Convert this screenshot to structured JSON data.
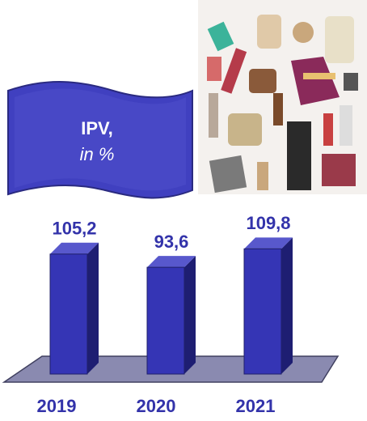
{
  "chart_data": {
    "type": "bar",
    "title": "IPV,",
    "subtitle": "in %",
    "categories": [
      "2019",
      "2020",
      "2021"
    ],
    "values": [
      105.2,
      93.6,
      109.8
    ],
    "value_labels": [
      "105,2",
      "93,6",
      "109,8"
    ],
    "color": "#3535b5",
    "ylim": [
      0,
      115
    ]
  }
}
